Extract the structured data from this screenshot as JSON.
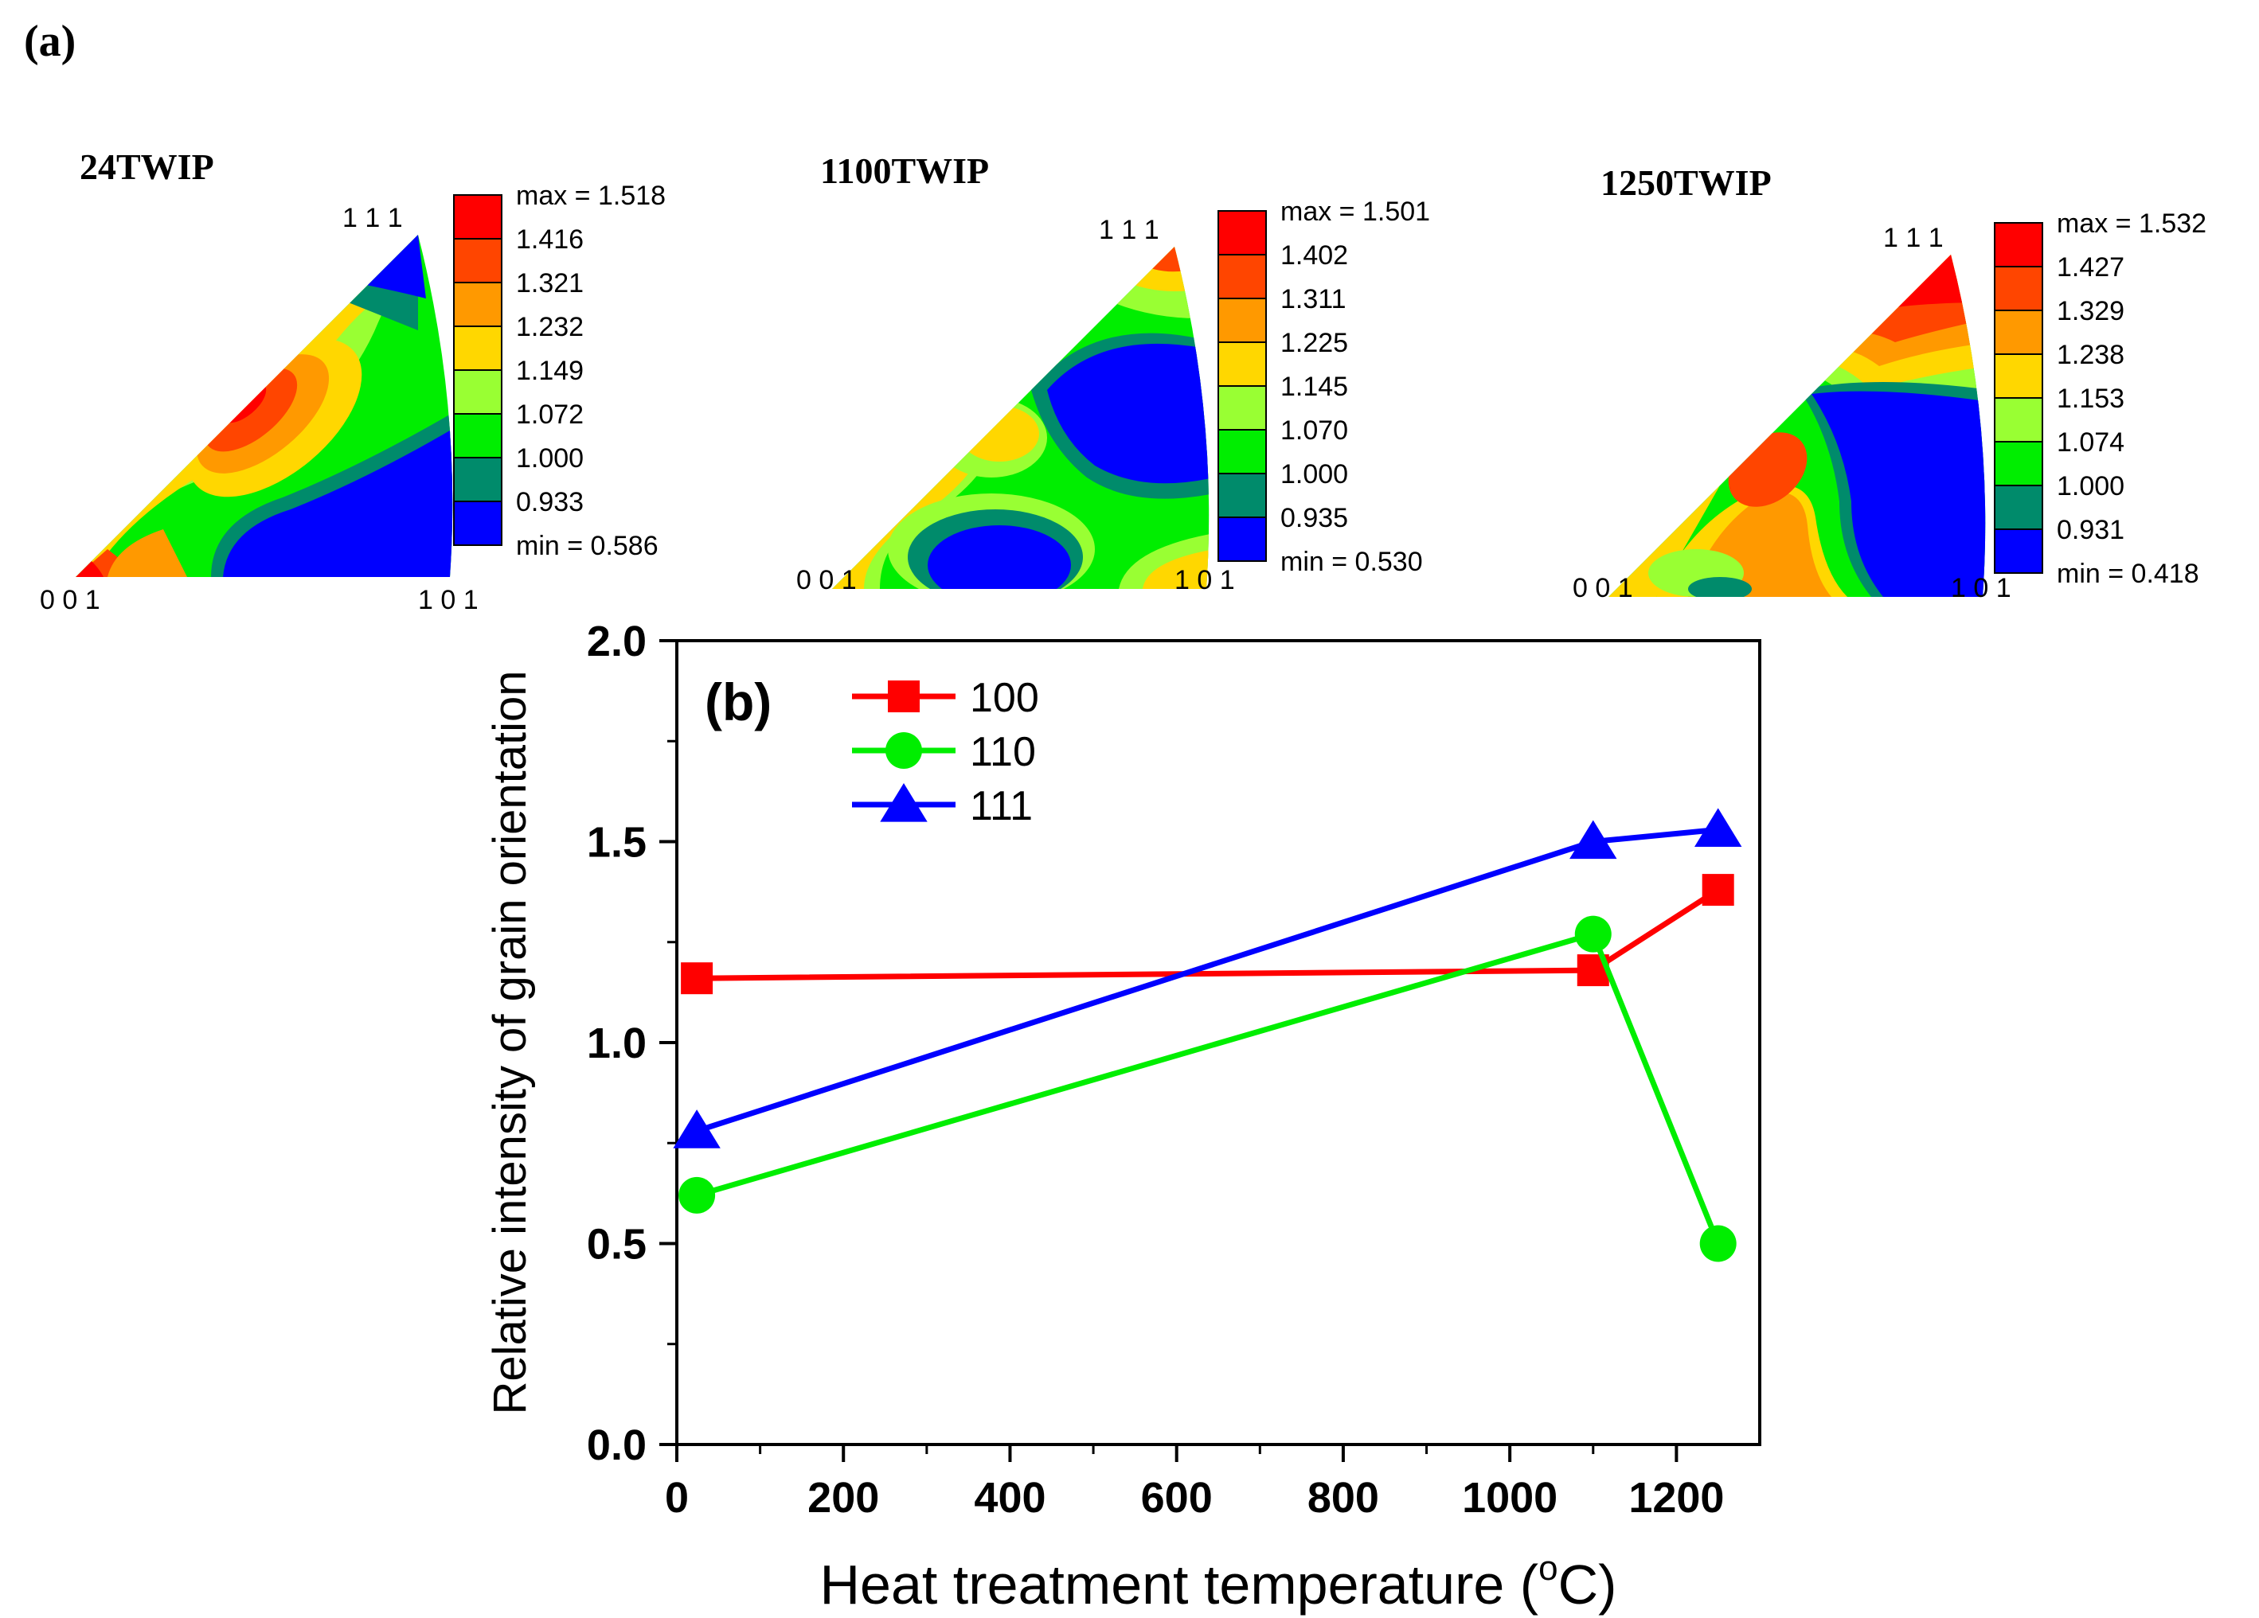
{
  "panel_a": {
    "label": "(a)",
    "ipfs": [
      {
        "title": "24TWIP",
        "corner_111": "1 1 1",
        "corner_001": "0 0 1",
        "corner_101": "1 0 1",
        "legend": [
          "max = 1.518",
          "1.416",
          "1.321",
          "1.232",
          "1.149",
          "1.072",
          "1.000",
          "0.933",
          "min = 0.586"
        ]
      },
      {
        "title": "1100TWIP",
        "corner_111": "1 1 1",
        "corner_001": "0 0 1",
        "corner_101": "1 0 1",
        "legend": [
          "max = 1.501",
          "1.402",
          "1.311",
          "1.225",
          "1.145",
          "1.070",
          "1.000",
          "0.935",
          "min = 0.530"
        ]
      },
      {
        "title": "1250TWIP",
        "corner_111": "1 1 1",
        "corner_001": "0 0 1",
        "corner_101": "1 0 1",
        "legend": [
          "max = 1.532",
          "1.427",
          "1.329",
          "1.238",
          "1.153",
          "1.074",
          "1.000",
          "0.931",
          "min = 0.418"
        ]
      }
    ],
    "level_colors": [
      "#ff0000",
      "#ff4500",
      "#ff9900",
      "#ffd700",
      "#99ff33",
      "#00ee00",
      "#008b6b",
      "#0000ff"
    ]
  },
  "chart_data": {
    "type": "line",
    "panel_label": "(b)",
    "xlabel": "Heat treatment temperature (",
    "xlabel_sup": "o",
    "xlabel_unit": "C)",
    "ylabel": "Relative intensity of grain orientation",
    "xlim": [
      0,
      1300
    ],
    "ylim": [
      0,
      2.0
    ],
    "x_ticks": [
      0,
      200,
      400,
      600,
      800,
      1000,
      1200
    ],
    "x_tick_labels": [
      "0",
      "200",
      "400",
      "600",
      "800",
      "1000",
      "1200"
    ],
    "y_ticks": [
      0,
      0.5,
      1.0,
      1.5,
      2.0
    ],
    "y_tick_labels": [
      "0.0",
      "0.5",
      "1.0",
      "1.5",
      "2.0"
    ],
    "x": [
      24,
      1100,
      1250
    ],
    "series": [
      {
        "name": "100",
        "color": "#ff0000",
        "marker": "square",
        "values": [
          1.16,
          1.18,
          1.38
        ]
      },
      {
        "name": "110",
        "color": "#00ee00",
        "marker": "circle",
        "values": [
          0.62,
          1.27,
          0.5
        ]
      },
      {
        "name": "111",
        "color": "#0000ff",
        "marker": "triangle",
        "values": [
          0.78,
          1.5,
          1.53
        ]
      }
    ],
    "legend_position": "top-left",
    "grid": false
  }
}
